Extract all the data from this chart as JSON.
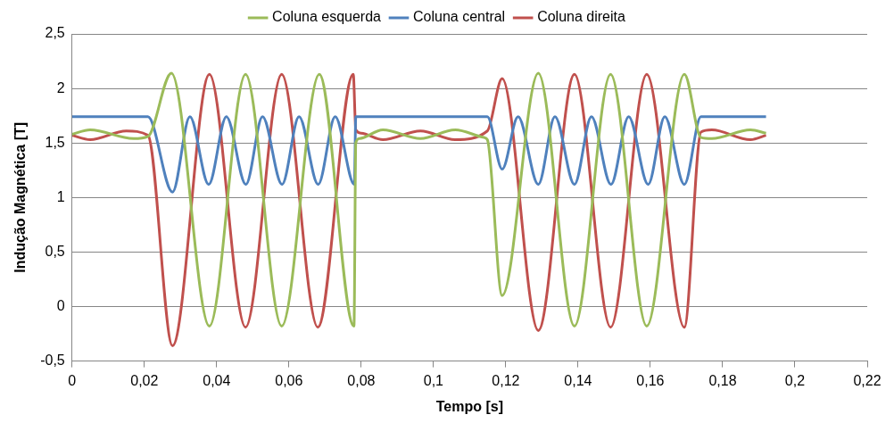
{
  "chart_data": {
    "type": "line",
    "xlabel": "Tempo [s]",
    "ylabel": "Indução Magnética [T]",
    "xlim": [
      0,
      0.22
    ],
    "xticks": [
      0,
      {
        "value": 0.02,
        "label": "0,02"
      },
      {
        "value": 0.04,
        "label": "0,04"
      },
      {
        "value": 0.06,
        "label": "0,06"
      },
      {
        "value": 0.08,
        "label": "0,08"
      },
      {
        "value": 0.1,
        "label": "0,1"
      },
      {
        "value": 0.12,
        "label": "0,12"
      },
      {
        "value": 0.14,
        "label": "0,14"
      },
      {
        "value": 0.16,
        "label": "0,16"
      },
      {
        "value": 0.18,
        "label": "0,18"
      },
      {
        "value": 0.2,
        "label": "0,2"
      },
      {
        "value": 0.22,
        "label": "0,22"
      }
    ],
    "ylim": [
      -0.5,
      2.5
    ],
    "yticks": [
      {
        "value": -0.5,
        "label": "-0,5"
      },
      0,
      {
        "value": 0.5,
        "label": "0,5"
      },
      1,
      {
        "value": 1.5,
        "label": "1,5"
      },
      2,
      {
        "value": 2.5,
        "label": "2,5"
      }
    ],
    "grid": "y",
    "legend": "top",
    "marker": "none",
    "line_style": "solid",
    "series": [
      {
        "name": "Coluna esquerda",
        "color": "#9bbb59",
        "x": [
          0,
          0.005,
          0.017,
          0.021,
          0.0275,
          0.038,
          0.048,
          0.058,
          0.0684,
          0.078,
          0.0785,
          0.0795,
          0.086,
          0.0964,
          0.106,
          0.114,
          0.1149,
          0.119,
          0.129,
          0.139,
          0.149,
          0.159,
          0.1694,
          0.174,
          0.177,
          0.1877,
          0.192
        ],
        "values": [
          1.58,
          1.62,
          1.54,
          1.56,
          2.14,
          -0.18,
          2.13,
          -0.18,
          2.13,
          -0.18,
          1.5,
          1.54,
          1.62,
          1.54,
          1.62,
          1.55,
          1.53,
          0.1,
          2.14,
          -0.18,
          2.13,
          -0.18,
          2.13,
          1.55,
          1.54,
          1.62,
          1.59
        ]
      },
      {
        "name": "Coluna central",
        "color": "#4f81bd",
        "x": [
          0,
          0.021,
          0.0278,
          0.0326,
          0.0378,
          0.0427,
          0.0481,
          0.0527,
          0.0581,
          0.0628,
          0.0681,
          0.0728,
          0.0781,
          0.0785,
          0.1149,
          0.119,
          0.1234,
          0.129,
          0.1336,
          0.139,
          0.1437,
          0.1491,
          0.154,
          0.1594,
          0.164,
          0.1694,
          0.174,
          0.192
        ],
        "values": [
          1.74,
          1.74,
          1.05,
          1.74,
          1.12,
          1.74,
          1.12,
          1.74,
          1.12,
          1.74,
          1.12,
          1.74,
          1.12,
          1.74,
          1.74,
          1.26,
          1.74,
          1.12,
          1.74,
          1.12,
          1.74,
          1.12,
          1.74,
          1.12,
          1.74,
          1.12,
          1.74,
          1.74
        ]
      },
      {
        "name": "Coluna direita",
        "color": "#c0504d",
        "x": [
          0,
          0.005,
          0.015,
          0.021,
          0.0278,
          0.038,
          0.048,
          0.058,
          0.068,
          0.0778,
          0.0785,
          0.08,
          0.086,
          0.0964,
          0.106,
          0.1149,
          0.119,
          0.129,
          0.139,
          0.149,
          0.159,
          0.1694,
          0.174,
          0.177,
          0.1877,
          0.192
        ],
        "values": [
          1.57,
          1.53,
          1.61,
          1.57,
          -0.36,
          2.13,
          -0.19,
          2.13,
          -0.19,
          2.13,
          1.62,
          1.59,
          1.53,
          1.61,
          1.53,
          1.61,
          2.09,
          -0.22,
          2.13,
          -0.19,
          2.13,
          -0.19,
          1.6,
          1.62,
          1.53,
          1.57
        ]
      }
    ]
  }
}
